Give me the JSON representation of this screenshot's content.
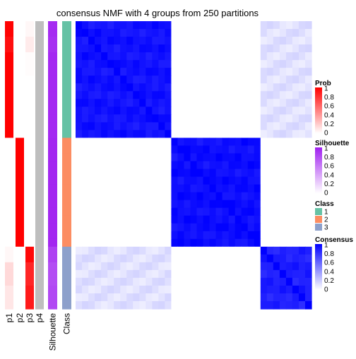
{
  "chart_data": {
    "type": "heatmap",
    "title": "consensus NMF with 4 groups from 250 partitions",
    "group_sizes": [
      15,
      14,
      8
    ],
    "row_annotations": [
      {
        "name": "p1",
        "color": "#ff0000"
      },
      {
        "name": "p2",
        "color": "#ff0000"
      },
      {
        "name": "p3",
        "color": "#ff0000"
      },
      {
        "name": "p4",
        "color": "#bebebe"
      },
      {
        "name": "Silhouette",
        "color": "#a020f0"
      },
      {
        "name": "Class",
        "color": "#66c2a5"
      }
    ],
    "legends": [
      {
        "title": "Prob",
        "type": "continuous",
        "ticks": [
          "1",
          "0.8",
          "0.6",
          "0.4",
          "0.2",
          "0"
        ],
        "colors": [
          "#ff0000",
          "#ffffff"
        ]
      },
      {
        "title": "Silhouette",
        "type": "continuous",
        "ticks": [
          "1",
          "0.8",
          "0.6",
          "0.4",
          "0.2",
          "0"
        ],
        "colors": [
          "#a020f0",
          "#ffffff"
        ]
      },
      {
        "title": "Class",
        "type": "discrete",
        "ticks": [
          "1",
          "2",
          "3"
        ],
        "colors": [
          "#66c2a5",
          "#fc8d62",
          "#8da0cb"
        ]
      },
      {
        "title": "Consensus",
        "type": "continuous",
        "ticks": [
          "1",
          "0.8",
          "0.6",
          "0.4",
          "0.2",
          "0"
        ],
        "colors": [
          "#0000ff",
          "#ffffff"
        ]
      }
    ],
    "class_colors": {
      "1": "#66c2a5",
      "2": "#fc8d62",
      "3": "#8da0cb"
    },
    "prob_color": "#ff0000",
    "silhouette_color": "#a020f0",
    "consensus_color": "#0000ff",
    "p4_color": "#bebebe",
    "samples": [
      {
        "class": "1",
        "p1": 0.99,
        "p2": 0,
        "p3": 0.03,
        "silhouette": 0.95
      },
      {
        "class": "1",
        "p1": 0.99,
        "p2": 0,
        "p3": 0.03,
        "silhouette": 0.95
      },
      {
        "class": "1",
        "p1": 0.94,
        "p2": 0,
        "p3": 0.08,
        "silhouette": 0.93
      },
      {
        "class": "1",
        "p1": 0.94,
        "p2": 0,
        "p3": 0.08,
        "silhouette": 0.93
      },
      {
        "class": "1",
        "p1": 1.0,
        "p2": 0,
        "p3": 0.01,
        "silhouette": 0.96
      },
      {
        "class": "1",
        "p1": 1.0,
        "p2": 0,
        "p3": 0.01,
        "silhouette": 0.96
      },
      {
        "class": "1",
        "p1": 1.0,
        "p2": 0,
        "p3": 0.01,
        "silhouette": 0.96
      },
      {
        "class": "1",
        "p1": 1.0,
        "p2": 0,
        "p3": 0.0,
        "silhouette": 0.96
      },
      {
        "class": "1",
        "p1": 1.0,
        "p2": 0,
        "p3": 0.0,
        "silhouette": 0.96
      },
      {
        "class": "1",
        "p1": 1.0,
        "p2": 0,
        "p3": 0.0,
        "silhouette": 0.96
      },
      {
        "class": "1",
        "p1": 1.0,
        "p2": 0,
        "p3": 0.0,
        "silhouette": 0.96
      },
      {
        "class": "1",
        "p1": 1.0,
        "p2": 0,
        "p3": 0.0,
        "silhouette": 0.96
      },
      {
        "class": "1",
        "p1": 1.0,
        "p2": 0,
        "p3": 0.0,
        "silhouette": 0.96
      },
      {
        "class": "1",
        "p1": 1.0,
        "p2": 0,
        "p3": 0.0,
        "silhouette": 0.96
      },
      {
        "class": "1",
        "p1": 1.0,
        "p2": 0,
        "p3": 0.0,
        "silhouette": 0.96
      },
      {
        "class": "2",
        "p1": 0,
        "p2": 1.0,
        "p3": 0,
        "silhouette": 0.97
      },
      {
        "class": "2",
        "p1": 0,
        "p2": 1.0,
        "p3": 0,
        "silhouette": 0.97
      },
      {
        "class": "2",
        "p1": 0,
        "p2": 1.0,
        "p3": 0,
        "silhouette": 0.97
      },
      {
        "class": "2",
        "p1": 0,
        "p2": 1.0,
        "p3": 0,
        "silhouette": 0.97
      },
      {
        "class": "2",
        "p1": 0,
        "p2": 1.0,
        "p3": 0,
        "silhouette": 0.97
      },
      {
        "class": "2",
        "p1": 0,
        "p2": 1.0,
        "p3": 0,
        "silhouette": 0.97
      },
      {
        "class": "2",
        "p1": 0,
        "p2": 1.0,
        "p3": 0,
        "silhouette": 0.97
      },
      {
        "class": "2",
        "p1": 0,
        "p2": 1.0,
        "p3": 0,
        "silhouette": 0.97
      },
      {
        "class": "2",
        "p1": 0,
        "p2": 1.0,
        "p3": 0,
        "silhouette": 0.97
      },
      {
        "class": "2",
        "p1": 0,
        "p2": 1.0,
        "p3": 0,
        "silhouette": 0.97
      },
      {
        "class": "2",
        "p1": 0,
        "p2": 1.0,
        "p3": 0,
        "silhouette": 0.97
      },
      {
        "class": "2",
        "p1": 0,
        "p2": 1.0,
        "p3": 0,
        "silhouette": 0.97
      },
      {
        "class": "2",
        "p1": 0,
        "p2": 1.0,
        "p3": 0,
        "silhouette": 0.97
      },
      {
        "class": "2",
        "p1": 0,
        "p2": 1.0,
        "p3": 0,
        "silhouette": 0.97
      },
      {
        "class": "3",
        "p1": 0.03,
        "p2": 0,
        "p3": 0.97,
        "silhouette": 0.85
      },
      {
        "class": "3",
        "p1": 0.03,
        "p2": 0,
        "p3": 0.97,
        "silhouette": 0.85
      },
      {
        "class": "3",
        "p1": 0.15,
        "p2": 0,
        "p3": 0.85,
        "silhouette": 0.8
      },
      {
        "class": "3",
        "p1": 0.15,
        "p2": 0,
        "p3": 0.85,
        "silhouette": 0.8
      },
      {
        "class": "3",
        "p1": 0.15,
        "p2": 0,
        "p3": 0.85,
        "silhouette": 0.8
      },
      {
        "class": "3",
        "p1": 0.1,
        "p2": 0,
        "p3": 0.9,
        "silhouette": 0.82
      },
      {
        "class": "3",
        "p1": 0.1,
        "p2": 0,
        "p3": 0.9,
        "silhouette": 0.82
      },
      {
        "class": "3",
        "p1": 0.1,
        "p2": 0,
        "p3": 0.9,
        "silhouette": 0.82
      }
    ],
    "consensus": {
      "within": [
        0.93,
        0.95,
        0.88
      ],
      "between": [
        [
          1,
          0,
          0.12
        ],
        [
          0,
          1,
          0
        ],
        [
          0.12,
          0,
          1
        ]
      ]
    }
  }
}
